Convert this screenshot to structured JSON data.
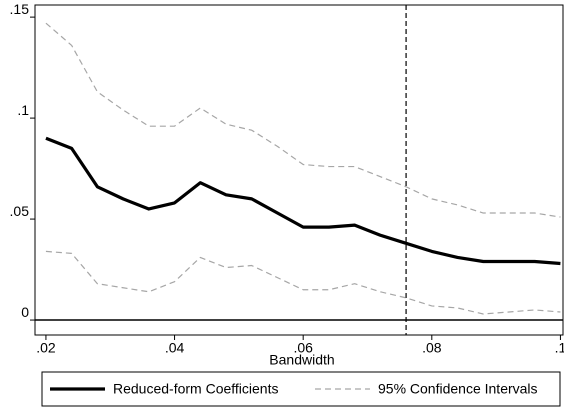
{
  "chart_data": {
    "type": "line",
    "x_label": "Bandwidth",
    "x": [
      0.02,
      0.024,
      0.028,
      0.032,
      0.036,
      0.04,
      0.044,
      0.048,
      0.052,
      0.056,
      0.06,
      0.064,
      0.068,
      0.072,
      0.076,
      0.08,
      0.084,
      0.088,
      0.092,
      0.096,
      0.1
    ],
    "series": [
      {
        "name": "Reduced-form Coefficients",
        "color": "#000000",
        "values": [
          0.09,
          0.085,
          0.066,
          0.06,
          0.055,
          0.058,
          0.068,
          0.062,
          0.06,
          0.053,
          0.046,
          0.046,
          0.047,
          0.042,
          0.038,
          0.034,
          0.031,
          0.029,
          0.029,
          0.029,
          0.028
        ]
      },
      {
        "name": "95% Confidence Intervals",
        "color": "#a6a6a6",
        "values": [
          0.147,
          0.136,
          0.113,
          0.104,
          0.096,
          0.096,
          0.105,
          0.097,
          0.094,
          0.086,
          0.077,
          0.076,
          0.076,
          0.071,
          0.066,
          0.06,
          0.057,
          0.053,
          0.053,
          0.053,
          0.051
        ],
        "lower": [
          0.034,
          0.033,
          0.018,
          0.016,
          0.014,
          0.019,
          0.031,
          0.026,
          0.027,
          0.021,
          0.015,
          0.015,
          0.018,
          0.014,
          0.011,
          0.007,
          0.006,
          0.003,
          0.004,
          0.005,
          0.004
        ]
      }
    ],
    "xlim": [
      0.0183,
      0.1004
    ],
    "ylim": [
      -0.0074,
      0.156
    ],
    "xticks": [
      {
        "value": 0.02,
        "label": ".02"
      },
      {
        "value": 0.04,
        "label": ".04"
      },
      {
        "value": 0.06,
        "label": ".06"
      },
      {
        "value": 0.08,
        "label": ".08"
      },
      {
        "value": 0.1,
        "label": ".1"
      }
    ],
    "yticks": [
      0,
      {
        "value": 0.05,
        "label": ".05"
      },
      {
        "value": 0.1,
        "label": ".1"
      },
      {
        "value": 0.15,
        "label": ".15"
      }
    ],
    "vline": 0.076,
    "hline": 0,
    "grid": false,
    "legend": "bottom"
  }
}
